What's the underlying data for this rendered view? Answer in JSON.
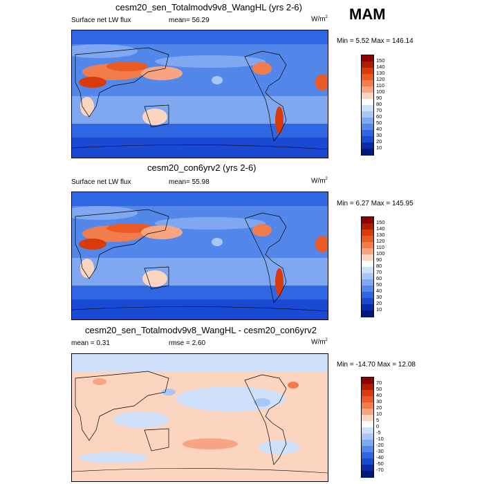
{
  "season": "MAM",
  "panels": [
    {
      "title": "cesm20_sen_Totalmodv9v8_WangHL (yrs 2-6)",
      "left_label": "Surface net LW flux",
      "center_label": "mean=  56.29",
      "units": "W/m",
      "units_sup": "2",
      "minmax": "Min =   5.52 Max = 146.14",
      "colorbar": {
        "labels": [
          "150",
          "140",
          "130",
          "120",
          "110",
          "100",
          "90",
          "80",
          "70",
          "60",
          "50",
          "40",
          "30",
          "20",
          "10"
        ],
        "colors": [
          "#8b0000",
          "#b01c00",
          "#d83a0a",
          "#ea5a24",
          "#f27c4c",
          "#f7a582",
          "#fbd5bf",
          "#ffffff",
          "#cfe0fb",
          "#a9c6f6",
          "#7fa8f0",
          "#5388ea",
          "#2f67e2",
          "#1a4ad3",
          "#0a2aa8",
          "#001a7a"
        ]
      }
    },
    {
      "title": "cesm20_con6yrv2 (yrs 2-6)",
      "left_label": "Surface net LW flux",
      "center_label": "mean=  55.98",
      "units": "W/m",
      "units_sup": "2",
      "minmax": "Min =   6.27 Max = 145.95",
      "colorbar": {
        "labels": [
          "150",
          "140",
          "130",
          "120",
          "110",
          "100",
          "90",
          "80",
          "70",
          "60",
          "50",
          "40",
          "30",
          "20",
          "10"
        ],
        "colors": [
          "#8b0000",
          "#b01c00",
          "#d83a0a",
          "#ea5a24",
          "#f27c4c",
          "#f7a582",
          "#fbd5bf",
          "#ffffff",
          "#cfe0fb",
          "#a9c6f6",
          "#7fa8f0",
          "#5388ea",
          "#2f67e2",
          "#1a4ad3",
          "#0a2aa8",
          "#001a7a"
        ]
      }
    },
    {
      "title": "cesm20_sen_Totalmodv9v8_WangHL - cesm20_con6yrv2",
      "left_label": "mean =   0.31",
      "center_label": "rmse =   2.60",
      "units": "W/m",
      "units_sup": "2",
      "minmax": "Min = -14.70 Max =  12.08",
      "colorbar": {
        "labels": [
          "70",
          "50",
          "40",
          "30",
          "20",
          "10",
          "5",
          "0",
          "-5",
          "-10",
          "-20",
          "-30",
          "-40",
          "-50",
          "-70"
        ],
        "colors": [
          "#8b0000",
          "#b01c00",
          "#d83a0a",
          "#ea5a24",
          "#f27c4c",
          "#f7a582",
          "#fbd5bf",
          "#ffffff",
          "#cfe0fb",
          "#a9c6f6",
          "#7fa8f0",
          "#5388ea",
          "#2f67e2",
          "#1a4ad3",
          "#0a2aa8",
          "#001a7a"
        ]
      }
    }
  ]
}
